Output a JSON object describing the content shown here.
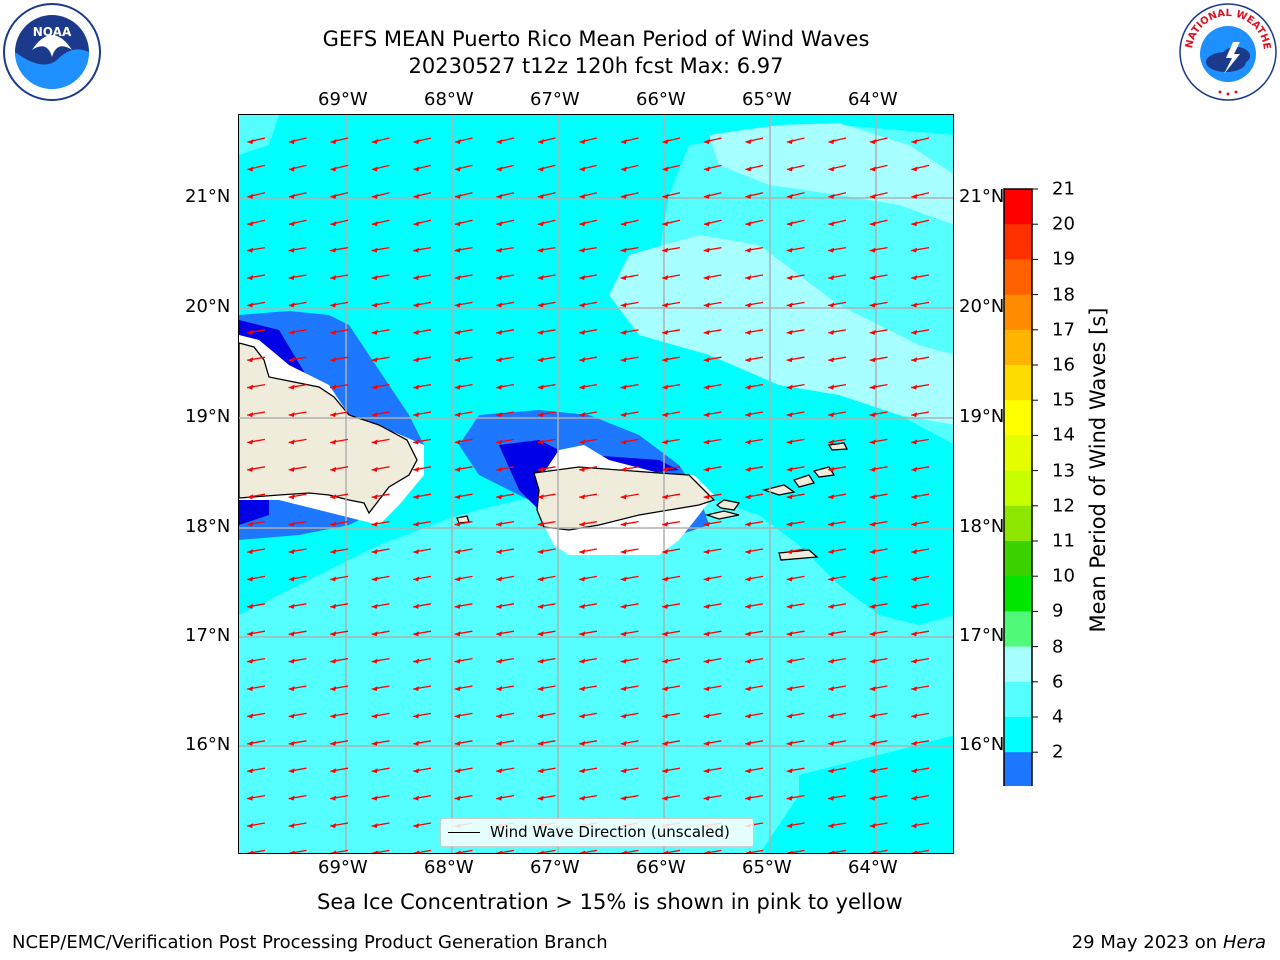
{
  "header": {
    "title_line1": "GEFS MEAN Puerto Rico Mean Period of Wind Waves",
    "title_line2": "20230527 t12z 120h fcst   Max: 6.97"
  },
  "logos": {
    "noaa_icon": "noaa-logo",
    "noaa_text": "NOAA",
    "noaa_ring_text": "NATIONAL OCEANIC AND ATMOSPHERIC ADMINISTRATION · U.S. DEPARTMENT OF COMMERCE",
    "nws_icon": "nws-logo",
    "nws_ring_text": "NATIONAL WEATHER SERVICE"
  },
  "map": {
    "lon_labels": [
      "69°W",
      "68°W",
      "67°W",
      "66°W",
      "65°W",
      "64°W"
    ],
    "lat_labels": [
      "21°N",
      "20°N",
      "19°N",
      "18°N",
      "17°N",
      "16°N"
    ],
    "colors": {
      "ocean_4_6": "#00ffff",
      "ocean_6_8": "#55ffff",
      "ocean_8_9": "#a8ffff",
      "low_2_4": "#1e78ff",
      "low_below_2": "#0000e6",
      "land": "#efecdc",
      "arrow": "#ff0000",
      "grid": "#b0b0b0"
    },
    "legend_label": "Wind Wave Direction (unscaled)"
  },
  "colorbar": {
    "title": "Mean Period of Wind Waves [s]",
    "ticks": [
      "21",
      "20",
      "19",
      "18",
      "17",
      "16",
      "15",
      "14",
      "13",
      "12",
      "11",
      "10",
      "9",
      "8",
      "6",
      "4",
      "2"
    ],
    "colors": [
      "#ff0000",
      "#ff3000",
      "#ff6000",
      "#ff8c00",
      "#ffb400",
      "#ffdc00",
      "#ffff00",
      "#e6ff00",
      "#c8ff00",
      "#8ce600",
      "#3cd200",
      "#00e600",
      "#50fa78",
      "#a8ffff",
      "#55ffff",
      "#00ffff",
      "#1e78ff"
    ],
    "under_color": "#0000e6"
  },
  "footer": {
    "sea_ice_note": "Sea Ice Concentration > 15% is shown in pink to yellow",
    "branch": "NCEP/EMC/Verification Post Processing Product Generation Branch",
    "date": "29 May 2023 on",
    "host": "Hera"
  }
}
